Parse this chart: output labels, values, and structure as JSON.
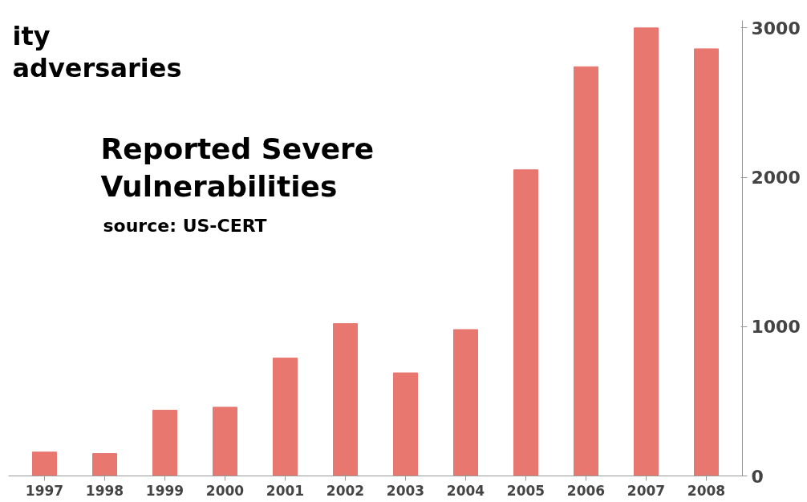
{
  "chart_data": {
    "type": "bar",
    "title": "Reported Severe Vulnerabilities",
    "annotations": [
      "source: US-CERT",
      "ity",
      "adversaries"
    ],
    "categories": [
      "1997",
      "1998",
      "1999",
      "2000",
      "2001",
      "2002",
      "2003",
      "2004",
      "2005",
      "2006",
      "2007",
      "2008"
    ],
    "values": [
      160,
      150,
      440,
      460,
      790,
      1020,
      690,
      980,
      2050,
      2740,
      3000,
      2860
    ],
    "color": "#e8776f",
    "ylim": [
      0,
      3050
    ],
    "yticks": [
      0,
      1000,
      2000,
      3000
    ],
    "grid": false
  }
}
